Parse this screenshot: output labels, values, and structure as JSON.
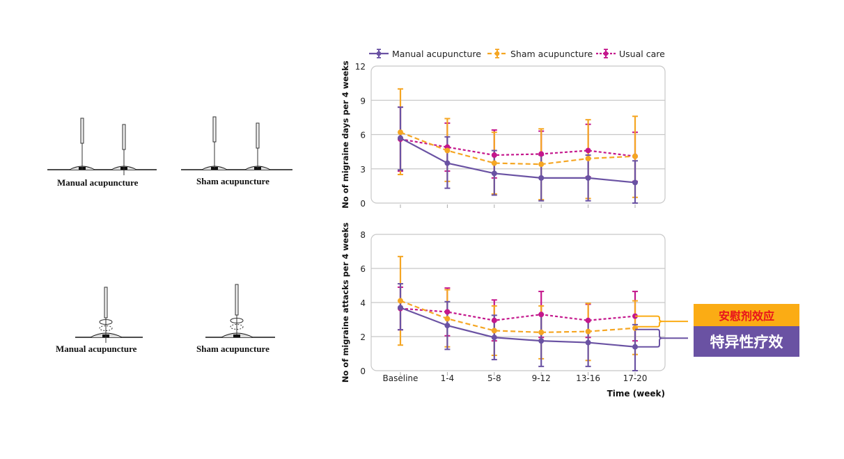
{
  "illustrations": {
    "top_row": [
      {
        "label": "Manual acupuncture",
        "needles": 2,
        "penetrating": true
      },
      {
        "label": "Sham acupuncture",
        "needles": 2,
        "penetrating": false
      }
    ],
    "bottom_row": [
      {
        "label": "Manual acupuncture",
        "needles": 1,
        "penetrating": true,
        "rotation": true
      },
      {
        "label": "Sham acupuncture",
        "needles": 1,
        "penetrating": false,
        "rotation": true
      }
    ]
  },
  "annotations": {
    "placebo_effect": "安慰剂效应",
    "specific_effect": "特异性疗效",
    "placebo_color": "#fbac14",
    "specific_color": "#6a52a3"
  },
  "chart_data": [
    {
      "type": "line",
      "title": "",
      "xlabel": "",
      "ylabel": "No of migraine days per 4 weeks",
      "ylim": [
        0,
        12
      ],
      "yticks": [
        0,
        3,
        6,
        9,
        12
      ],
      "grid": true,
      "legend": "top",
      "categories": [
        "Baseline",
        "1-4",
        "5-8",
        "9-12",
        "13-16",
        "17-20"
      ],
      "show_xtick_labels": false,
      "series": [
        {
          "name": "Manual acupuncture",
          "color": "#6a52a3",
          "style": "solid",
          "values": [
            5.7,
            3.5,
            2.6,
            2.2,
            2.2,
            1.8
          ],
          "upper": [
            8.4,
            5.8,
            4.6,
            4.2,
            4.2,
            3.7
          ],
          "lower": [
            2.9,
            1.3,
            0.7,
            0.2,
            0.2,
            0.0
          ]
        },
        {
          "name": "Sham acupuncture",
          "color": "#f5a623",
          "style": "dashed",
          "values": [
            6.2,
            4.6,
            3.5,
            3.4,
            3.9,
            4.1
          ],
          "upper": [
            10.0,
            7.4,
            6.2,
            6.5,
            7.3,
            7.6
          ],
          "lower": [
            2.5,
            1.9,
            0.8,
            0.3,
            0.4,
            0.5
          ]
        },
        {
          "name": "Usual care",
          "color": "#c4178c",
          "style": "dotted",
          "values": [
            5.6,
            4.9,
            4.2,
            4.3,
            4.6,
            4.1
          ],
          "upper": [
            8.4,
            7.0,
            6.4,
            6.3,
            6.9,
            6.2
          ],
          "lower": [
            2.8,
            2.8,
            2.2,
            2.2,
            2.3,
            1.9
          ]
        }
      ]
    },
    {
      "type": "line",
      "title": "",
      "xlabel": "Time (week)",
      "ylabel": "No of migraine attacks per 4 weeks",
      "ylim": [
        0,
        8
      ],
      "yticks": [
        0,
        2,
        4,
        6,
        8
      ],
      "grid": true,
      "categories": [
        "Baseline",
        "1-4",
        "5-8",
        "9-12",
        "13-16",
        "17-20"
      ],
      "show_xtick_labels": true,
      "series": [
        {
          "name": "Manual acupuncture",
          "color": "#6a52a3",
          "style": "solid",
          "values": [
            3.7,
            2.65,
            1.95,
            1.75,
            1.65,
            1.4
          ],
          "upper": [
            5.1,
            4.05,
            3.25,
            3.3,
            2.95,
            2.7
          ],
          "lower": [
            2.4,
            1.25,
            0.65,
            0.25,
            0.25,
            0.0
          ]
        },
        {
          "name": "Sham acupuncture",
          "color": "#f5a623",
          "style": "dashed",
          "values": [
            4.1,
            3.05,
            2.35,
            2.25,
            2.3,
            2.5
          ],
          "upper": [
            6.7,
            4.75,
            3.8,
            3.8,
            3.95,
            4.1
          ],
          "lower": [
            1.5,
            1.4,
            0.9,
            0.7,
            0.6,
            0.95
          ]
        },
        {
          "name": "Usual care",
          "color": "#c4178c",
          "style": "dotted",
          "values": [
            3.65,
            3.45,
            2.95,
            3.3,
            2.95,
            3.2
          ],
          "upper": [
            4.9,
            4.85,
            4.15,
            4.65,
            3.9,
            4.65
          ],
          "lower": [
            2.4,
            2.05,
            1.75,
            1.95,
            1.95,
            1.75
          ]
        }
      ]
    }
  ]
}
